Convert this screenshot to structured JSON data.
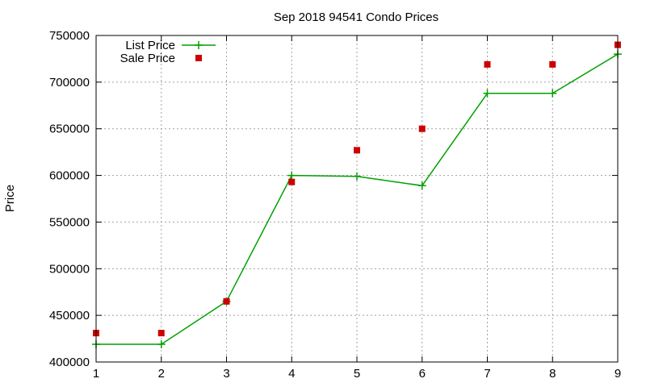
{
  "chart_data": {
    "type": "line",
    "title": "Sep 2018 94541 Condo Prices",
    "xlabel": "",
    "ylabel": "Price",
    "x": [
      1,
      2,
      3,
      4,
      5,
      6,
      7,
      8,
      9
    ],
    "xlim": [
      1,
      9
    ],
    "ylim": [
      400000,
      750000
    ],
    "xticks": [
      1,
      2,
      3,
      4,
      5,
      6,
      7,
      8,
      9
    ],
    "yticks": [
      400000,
      450000,
      500000,
      550000,
      600000,
      650000,
      700000,
      750000
    ],
    "grid": true,
    "legend_position": "top-left",
    "series": [
      {
        "name": "List Price",
        "style": "line-with-plus-markers",
        "color": "#00a000",
        "values": [
          419000,
          419000,
          465000,
          600000,
          599000,
          589000,
          688000,
          688000,
          730000
        ]
      },
      {
        "name": "Sale Price",
        "style": "square-points",
        "color": "#cc0000",
        "values": [
          431000,
          431000,
          465000,
          593000,
          627000,
          650000,
          719000,
          719000,
          740000
        ]
      }
    ]
  }
}
